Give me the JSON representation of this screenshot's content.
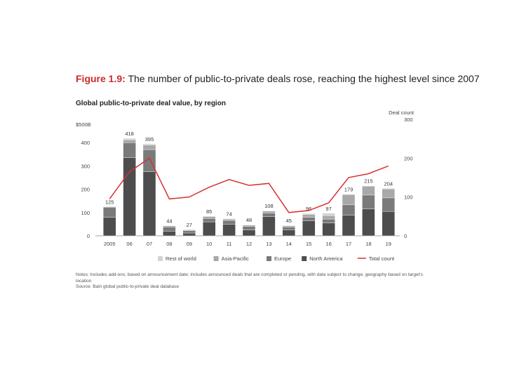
{
  "figure": {
    "number": "Figure 1.9:",
    "title": "The number of public-to-private deals rose, reaching the highest level since 2007"
  },
  "chart_data": {
    "type": "bar",
    "title": "Global public-to-private deal value, by region",
    "ylabel": "$500B",
    "y2label": "Deal count",
    "ylim": [
      0,
      500
    ],
    "y2lim": [
      0,
      300
    ],
    "yticks": [
      0,
      100,
      200,
      300,
      400
    ],
    "y2ticks": [
      0,
      100,
      200,
      300
    ],
    "categories": [
      "2005",
      "06",
      "07",
      "08",
      "09",
      "10",
      "11",
      "12",
      "13",
      "14",
      "15",
      "16",
      "17",
      "18",
      "19"
    ],
    "totals": [
      125,
      418,
      395,
      44,
      27,
      85,
      74,
      48,
      108,
      45,
      96,
      97,
      179,
      215,
      204
    ],
    "series": [
      {
        "name": "North America",
        "color": "#4d4d4d",
        "values": [
          80,
          335,
          275,
          20,
          12,
          60,
          50,
          25,
          82,
          26,
          65,
          55,
          88,
          115,
          105
        ]
      },
      {
        "name": "Europe",
        "color": "#7a7a7a",
        "values": [
          43,
          65,
          95,
          18,
          10,
          15,
          16,
          15,
          15,
          12,
          15,
          17,
          45,
          60,
          58
        ]
      },
      {
        "name": "Asia-Pacific",
        "color": "#a8a8a8",
        "values": [
          2,
          12,
          20,
          5,
          4,
          8,
          6,
          6,
          9,
          5,
          12,
          15,
          44,
          38,
          38
        ]
      },
      {
        "name": "Rest of world",
        "color": "#d3d3d3",
        "values": [
          0,
          6,
          5,
          1,
          1,
          2,
          2,
          2,
          2,
          2,
          4,
          10,
          2,
          2,
          3
        ]
      }
    ],
    "line": {
      "name": "Total count",
      "color": "#d93030",
      "values": [
        95,
        165,
        200,
        95,
        100,
        125,
        145,
        130,
        135,
        60,
        65,
        85,
        150,
        160,
        180
      ]
    },
    "legend_position": "bottom"
  },
  "notes": {
    "text": "Notes: Includes add-ons; based on announcement date; includes announced deals that are completed or pending, with data subject to change; geography based on target's location",
    "source": "Source: Bain global public-to-private deal database"
  }
}
